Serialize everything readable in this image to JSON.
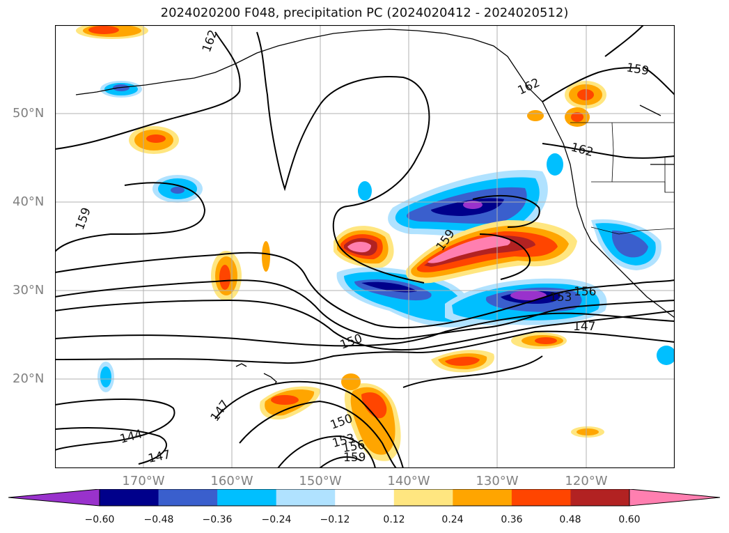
{
  "title": "2024020200 F048, precipitation PC (2024020412 - 2024020512)",
  "latitude_labels": [
    "50°N",
    "40°N",
    "30°N",
    "20°N"
  ],
  "longitude_labels": [
    "170°W",
    "160°W",
    "150°W",
    "140°W",
    "130°W",
    "120°W"
  ],
  "contour_labels": [
    "162",
    "162",
    "159",
    "162",
    "159",
    "159",
    "156",
    "153",
    "150",
    "147",
    "147",
    "144",
    "147",
    "150",
    "153",
    "156",
    "159"
  ],
  "colorbar": {
    "ticks": [
      "−0.60",
      "−0.48",
      "−0.36",
      "−0.24",
      "−0.12",
      "0.12",
      "0.24",
      "0.36",
      "0.48",
      "0.60"
    ],
    "colors": [
      "#9932cc",
      "#00008b",
      "#3a5fcd",
      "#00bfff",
      "#b0e2ff",
      "#ffffff",
      "#ffe680",
      "#ffa500",
      "#ff4500",
      "#b22222",
      "#ff7fb0"
    ],
    "extend": "both"
  }
}
